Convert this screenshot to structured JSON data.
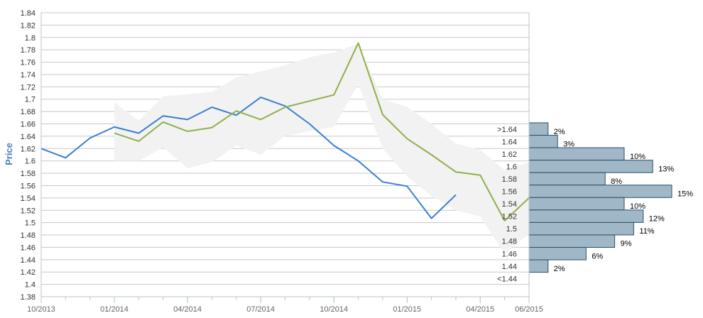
{
  "chart_data": {
    "type": "line",
    "ylabel": "Price",
    "ylim": [
      1.38,
      1.84
    ],
    "y_ticks": [
      "1.38",
      "1.4",
      "1.42",
      "1.44",
      "1.46",
      "1.48",
      "1.5",
      "1.52",
      "1.54",
      "1.56",
      "1.58",
      "1.6",
      "1.62",
      "1.64",
      "1.66",
      "1.68",
      "1.7",
      "1.72",
      "1.74",
      "1.76",
      "1.78",
      "1.8",
      "1.82",
      "1.84"
    ],
    "x_ticks": [
      "10/2013",
      "01/2014",
      "04/2014",
      "07/2014",
      "10/2014",
      "01/2015",
      "04/2015",
      "06/2015"
    ],
    "x_tick_dates": [
      "2013-10",
      "2014-01",
      "2014-04",
      "2014-07",
      "2014-10",
      "2015-01",
      "2015-04",
      "2015-06"
    ],
    "xlim": [
      "2013-10",
      "2015-06"
    ],
    "grid": true,
    "series": [
      {
        "color": "#3b7fce",
        "x": [
          "2013-10",
          "2013-11",
          "2013-12",
          "2014-01",
          "2014-02",
          "2014-03",
          "2014-04",
          "2014-05",
          "2014-06",
          "2014-07",
          "2014-08",
          "2014-09",
          "2014-10",
          "2014-11",
          "2014-12",
          "2015-01",
          "2015-02",
          "2015-03"
        ],
        "values": [
          1.62,
          1.605,
          1.637,
          1.655,
          1.645,
          1.673,
          1.667,
          1.687,
          1.674,
          1.703,
          1.689,
          1.66,
          1.625,
          1.6,
          1.566,
          1.559,
          1.507,
          1.545
        ]
      },
      {
        "color": "#8fb04a",
        "x": [
          "2014-01",
          "2014-02",
          "2014-03",
          "2014-04",
          "2014-05",
          "2014-06",
          "2014-07",
          "2014-08",
          "2014-09",
          "2014-10",
          "2014-11",
          "2014-12",
          "2015-01",
          "2015-02",
          "2015-03",
          "2015-04",
          "2015-05",
          "2015-06"
        ],
        "values": [
          1.645,
          1.632,
          1.663,
          1.648,
          1.654,
          1.681,
          1.667,
          1.687,
          1.697,
          1.707,
          1.791,
          1.675,
          1.636,
          1.61,
          1.582,
          1.577,
          1.503,
          1.54
        ]
      }
    ],
    "band": {
      "color": "#f2f2f2",
      "x": [
        "2014-01",
        "2014-02",
        "2014-03",
        "2014-04",
        "2014-05",
        "2014-06",
        "2014-07",
        "2014-08",
        "2014-09",
        "2014-10",
        "2014-11",
        "2014-12",
        "2015-01",
        "2015-02",
        "2015-03",
        "2015-04",
        "2015-05",
        "2015-06"
      ],
      "upper": [
        1.695,
        1.665,
        1.705,
        1.708,
        1.712,
        1.735,
        1.745,
        1.755,
        1.768,
        1.776,
        1.79,
        1.7,
        1.688,
        1.66,
        1.628,
        1.618,
        1.585,
        1.598
      ],
      "lower": [
        1.6,
        1.6,
        1.622,
        1.588,
        1.598,
        1.625,
        1.61,
        1.64,
        1.648,
        1.655,
        1.725,
        1.62,
        1.575,
        1.543,
        1.52,
        1.51,
        1.45,
        1.482
      ]
    },
    "histogram": {
      "color": "#9fb7c6",
      "categories": [
        ">1.64",
        "1.64",
        "1.62",
        "1.6",
        "1.58",
        "1.56",
        "1.54",
        "1.52",
        "1.5",
        "1.48",
        "1.46",
        "1.44",
        "<1.44"
      ],
      "values": [
        2,
        3,
        10,
        13,
        8,
        15,
        10,
        12,
        11,
        9,
        6,
        2,
        0
      ],
      "labels": [
        "2%",
        "3%",
        "10%",
        "13%",
        "8%",
        "15%",
        "10%",
        "12%",
        "11%",
        "9%",
        "6%",
        "2%",
        ""
      ]
    }
  }
}
